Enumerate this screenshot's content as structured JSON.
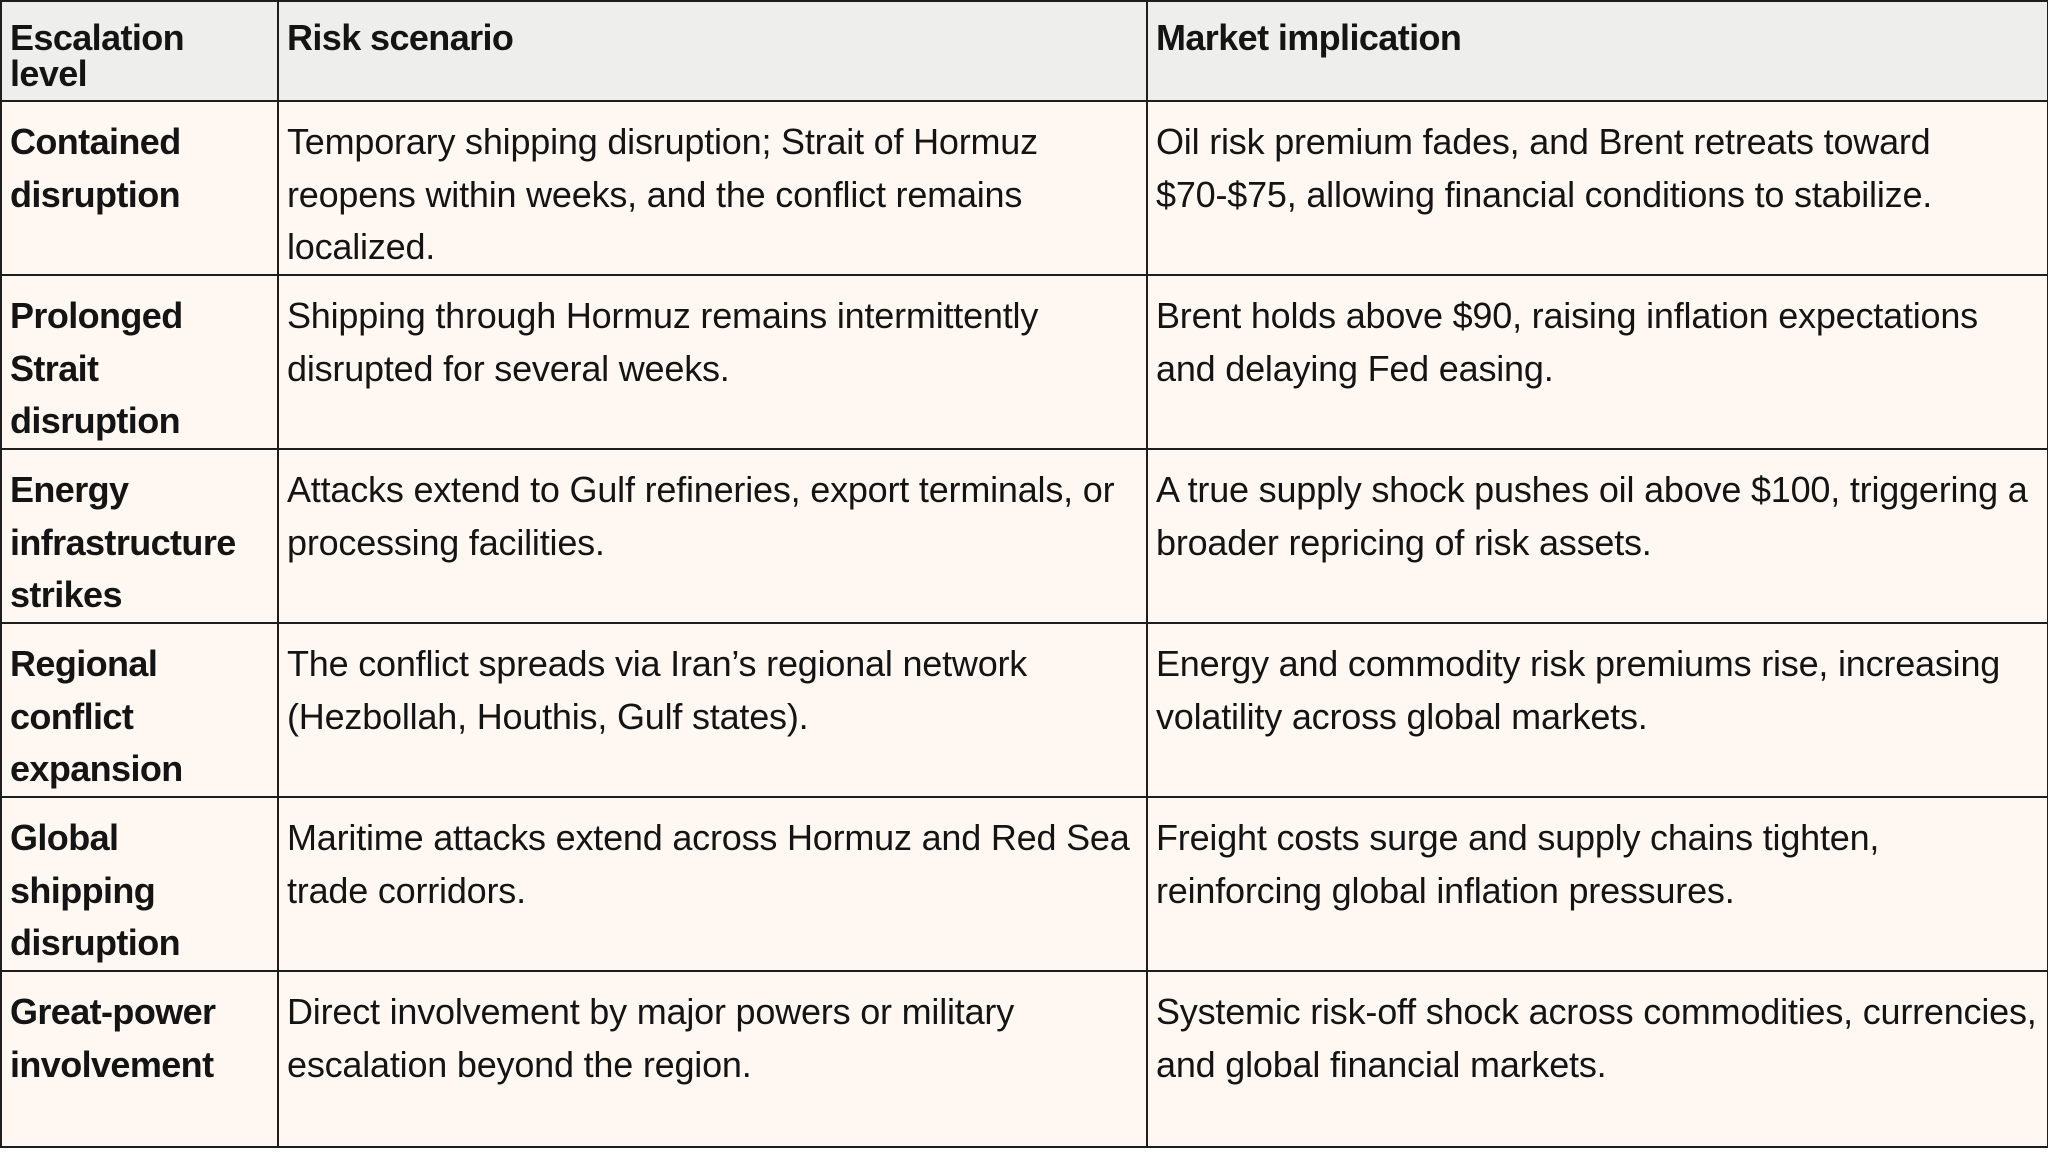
{
  "table": {
    "headers": {
      "level": "Escalation level",
      "scenario": "Risk scenario",
      "implication": "Market implication"
    },
    "rows": [
      {
        "level": "Contained disruption",
        "scenario": "Temporary shipping disruption; Strait of Hormuz reopens within weeks, and the conflict remains localized.",
        "implication": "Oil risk premium fades, and Brent retreats toward $70-$75, allowing financial conditions to stabilize."
      },
      {
        "level": "Prolonged Strait disruption",
        "scenario": "Shipping through Hormuz remains intermittently disrupted for several weeks.",
        "implication": "Brent holds above $90, raising inflation expectations and delaying Fed easing."
      },
      {
        "level": "Energy infrastructure strikes",
        "scenario": "Attacks extend to Gulf refineries, export terminals, or processing facilities.",
        "implication": "A true supply shock pushes oil above $100, triggering a broader repricing of risk assets."
      },
      {
        "level": "Regional conflict expansion",
        "scenario": "The conflict spreads via Iran’s regional network (Hezbollah, Houthis, Gulf states).",
        "implication": "Energy and commodity risk premiums rise, increasing volatility across global markets."
      },
      {
        "level": "Global shipping disruption",
        "scenario": "Maritime attacks extend across Hormuz and Red Sea trade corridors.",
        "implication": "Freight costs surge and supply chains tighten, reinforcing global inflation pressures."
      },
      {
        "level": "Great-power involvement",
        "scenario": "Direct involvement by major powers or military escalation beyond the region.",
        "implication": "Systemic risk-off shock across commodities, currencies, and global financial markets."
      }
    ]
  },
  "colors": {
    "header_background": "#eeeeed",
    "row_background": "#fff7f2",
    "border": "#1e1e1e",
    "text": "#141414"
  }
}
